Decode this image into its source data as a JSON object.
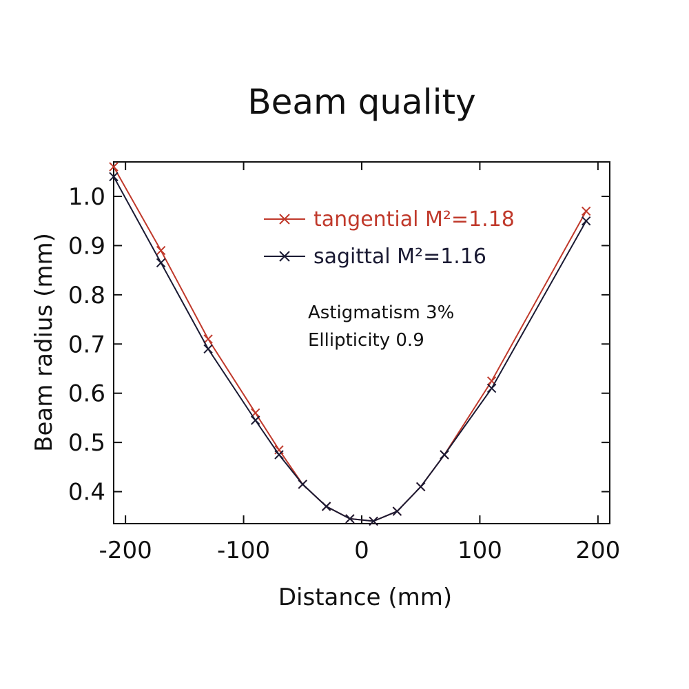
{
  "chart_data": {
    "type": "line",
    "title": "Beam quality",
    "xlabel": "Distance (mm)",
    "ylabel": "Beam radius (mm)",
    "xlim": [
      -210,
      210
    ],
    "ylim": [
      0.335,
      1.07
    ],
    "xticks": [
      -200,
      -100,
      0,
      100,
      200
    ],
    "xtick_labels": [
      "-200",
      "-100",
      "0",
      "100",
      "200"
    ],
    "yticks": [
      0.4,
      0.5,
      0.6,
      0.7,
      0.8,
      0.9,
      1.0
    ],
    "ytick_labels": [
      "0.4",
      "0.5",
      "0.6",
      "0.7",
      "0.8",
      "0.9",
      "1.0"
    ],
    "grid": false,
    "legend_position": "top-center",
    "series": [
      {
        "name": "tangential M²=1.18",
        "color": "#c0392b",
        "marker": "x",
        "points": [
          [
            -210,
            1.06
          ],
          [
            -170,
            0.89
          ],
          [
            -130,
            0.71
          ],
          [
            -90,
            0.56
          ],
          [
            -70,
            0.485
          ],
          [
            -50,
            0.415
          ],
          [
            -30,
            0.37
          ],
          [
            -10,
            0.345
          ],
          [
            10,
            0.34
          ],
          [
            30,
            0.36
          ],
          [
            50,
            0.41
          ],
          [
            70,
            0.475
          ],
          [
            110,
            0.625
          ],
          [
            190,
            0.97
          ]
        ]
      },
      {
        "name": "sagittal M²=1.16",
        "color": "#1a1a33",
        "marker": "x",
        "points": [
          [
            -210,
            1.04
          ],
          [
            -170,
            0.865
          ],
          [
            -130,
            0.69
          ],
          [
            -90,
            0.545
          ],
          [
            -70,
            0.475
          ],
          [
            -50,
            0.415
          ],
          [
            -30,
            0.37
          ],
          [
            -10,
            0.345
          ],
          [
            10,
            0.34
          ],
          [
            30,
            0.36
          ],
          [
            50,
            0.41
          ],
          [
            70,
            0.475
          ],
          [
            110,
            0.61
          ],
          [
            190,
            0.95
          ]
        ]
      }
    ],
    "legend_labels": [
      "tangential M²=1.18",
      "sagittal M²=1.16"
    ],
    "annotations": [
      "Astigmatism 3%",
      "Ellipticity 0.9"
    ]
  }
}
